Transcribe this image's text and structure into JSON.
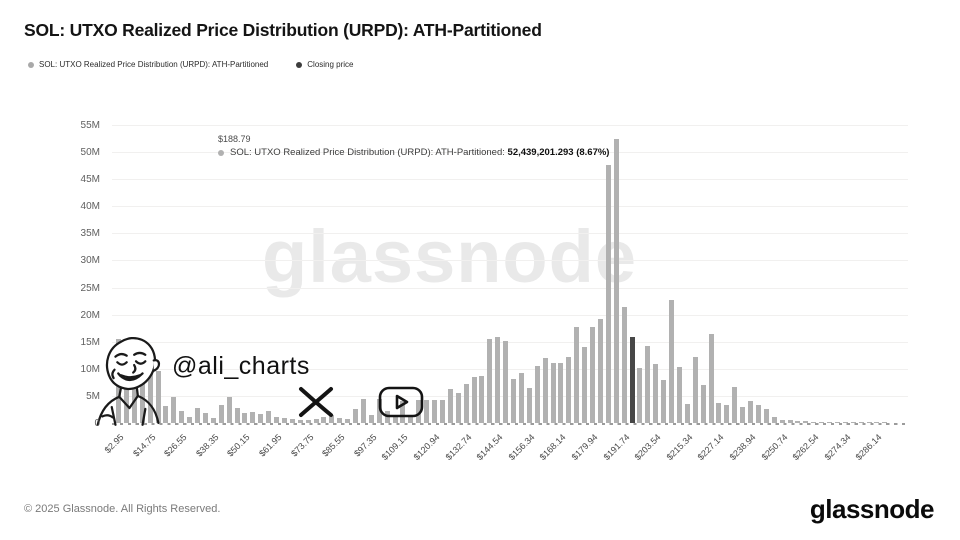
{
  "title": "SOL: UTXO Realized Price Distribution (URPD): ATH-Partitioned",
  "legend": {
    "items": [
      {
        "label": "SOL: UTXO Realized Price Distribution (URPD): ATH-Partitioned",
        "color": "#a9a9a9"
      },
      {
        "label": "Closing price",
        "color": "#3d3d3d"
      }
    ]
  },
  "tooltip": {
    "price": "$188.79",
    "label": "SOL: UTXO Realized Price Distribution (URPD): ATH-Partitioned:",
    "value": "52,439,201.293 (8.67%)"
  },
  "watermark": "glassnode",
  "signature": {
    "handle": "@ali_charts",
    "icons": [
      "x-logo",
      "youtube-logo"
    ]
  },
  "footer": {
    "copyright": "© 2025 Glassnode. All Rights Reserved.",
    "brand": "glassnode"
  },
  "chart_data": {
    "type": "bar",
    "title": "SOL: UTXO Realized Price Distribution (URPD): ATH-Partitioned",
    "ylabel": "",
    "xlabel": "",
    "ylim_millions": [
      0,
      55
    ],
    "y_ticks": [
      "0",
      "5M",
      "10M",
      "15M",
      "20M",
      "25M",
      "30M",
      "35M",
      "40M",
      "45M",
      "50M",
      "55M"
    ],
    "x_tick_labels": [
      "$2.95",
      "$14.75",
      "$26.55",
      "$38.35",
      "$50.15",
      "$61.95",
      "$73.75",
      "$85.55",
      "$97.35",
      "$109.15",
      "$120.94",
      "$132.74",
      "$144.54",
      "$156.34",
      "$168.14",
      "$179.94",
      "$191.74",
      "$203.54",
      "$215.34",
      "$227.14",
      "$238.94",
      "$250.74",
      "$262.54",
      "$274.34",
      "$286.14"
    ],
    "x_tick_every": 4,
    "bar_color": "#b1b1b1",
    "closing_bar_color": "#474747",
    "grid": true,
    "legend_position": "top-left",
    "values_millions": [
      15.5,
      10.5,
      8.7,
      10.6,
      11.0,
      9.6,
      3.1,
      4.8,
      2.3,
      1.2,
      2.7,
      1.9,
      1.0,
      3.3,
      4.8,
      2.7,
      1.8,
      2.0,
      1.6,
      2.3,
      1.2,
      0.9,
      0.7,
      0.5,
      0.5,
      0.7,
      1.2,
      1.5,
      1.0,
      0.8,
      2.5,
      4.5,
      1.5,
      4.5,
      2.2,
      1.2,
      4.0,
      1.5,
      4.2,
      4.3,
      4.2,
      4.3,
      6.2,
      5.5,
      7.2,
      8.5,
      8.6,
      15.5,
      15.8,
      15.2,
      8.2,
      9.3,
      6.5,
      10.6,
      12.0,
      11.0,
      11.1,
      12.1,
      17.7,
      14.0,
      17.8,
      19.2,
      47.6,
      52.44,
      21.4,
      15.8,
      10.2,
      14.3,
      10.9,
      7.9,
      22.7,
      10.3,
      3.5,
      12.1,
      7.0,
      16.5,
      3.7,
      3.3,
      6.7,
      2.9,
      4.0,
      3.4,
      2.5,
      1.1,
      0.6,
      0.5,
      0.35,
      0.3,
      0.25,
      0.2,
      0.15,
      0.12,
      0.1,
      0.08,
      0.06,
      0.05,
      0.04,
      0.03
    ],
    "closing_price_bar_index": 65,
    "highlighted_bar": {
      "index": 63,
      "price": "$188.79",
      "value": "52,439,201.293",
      "percent": "8.67%"
    }
  }
}
